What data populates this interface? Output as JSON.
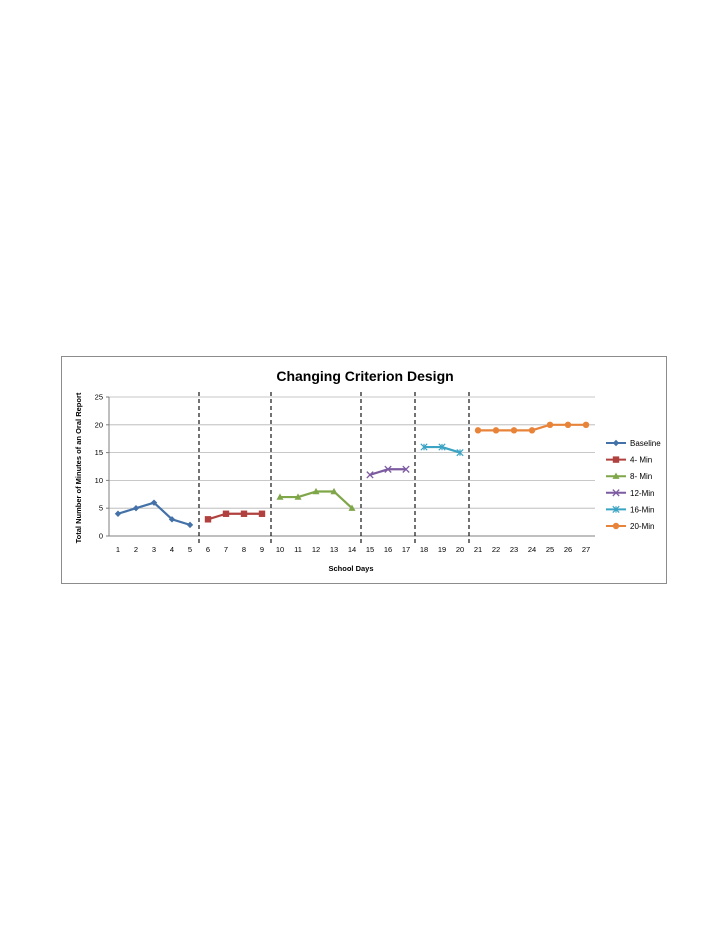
{
  "chart_data": {
    "type": "line",
    "title": "Changing Criterion Design",
    "xlabel": "School Days",
    "ylabel": "Total Number of Minutes of an Oral Report",
    "x": [
      1,
      2,
      3,
      4,
      5,
      6,
      7,
      8,
      9,
      10,
      11,
      12,
      13,
      14,
      15,
      16,
      17,
      18,
      19,
      20,
      21,
      22,
      23,
      24,
      25,
      26,
      27
    ],
    "xlim": [
      0.5,
      27.5
    ],
    "ylim": [
      0,
      25
    ],
    "yticks": [
      0,
      5,
      10,
      15,
      20,
      25
    ],
    "grid": true,
    "legend": "right",
    "phase_lines": [
      5.5,
      9.5,
      14.5,
      17.5,
      20.5
    ],
    "series": [
      {
        "name": "Baseline",
        "color": "#4472a8",
        "marker": "diamond",
        "x": [
          1,
          2,
          3,
          4,
          5
        ],
        "values": [
          4,
          5,
          6,
          3,
          2
        ]
      },
      {
        "name": "4- Min",
        "color": "#b0413e",
        "marker": "square",
        "x": [
          6,
          7,
          8,
          9
        ],
        "values": [
          3,
          4,
          4,
          4
        ]
      },
      {
        "name": "8- Min",
        "color": "#7fa648",
        "marker": "triangle",
        "x": [
          10,
          11,
          12,
          13,
          14
        ],
        "values": [
          7,
          7,
          8,
          8,
          5
        ]
      },
      {
        "name": "12-Min",
        "color": "#7d5ba1",
        "marker": "x",
        "x": [
          15,
          16,
          17
        ],
        "values": [
          11,
          12,
          12
        ]
      },
      {
        "name": "16-Min",
        "color": "#3ba3c4",
        "marker": "star",
        "x": [
          18,
          19,
          20
        ],
        "values": [
          16,
          16,
          15
        ]
      },
      {
        "name": "20-Min",
        "color": "#e8833a",
        "marker": "circle",
        "x": [
          21,
          22,
          23,
          24,
          25,
          26,
          27
        ],
        "values": [
          19,
          19,
          19,
          19,
          20,
          20,
          20
        ]
      }
    ]
  }
}
